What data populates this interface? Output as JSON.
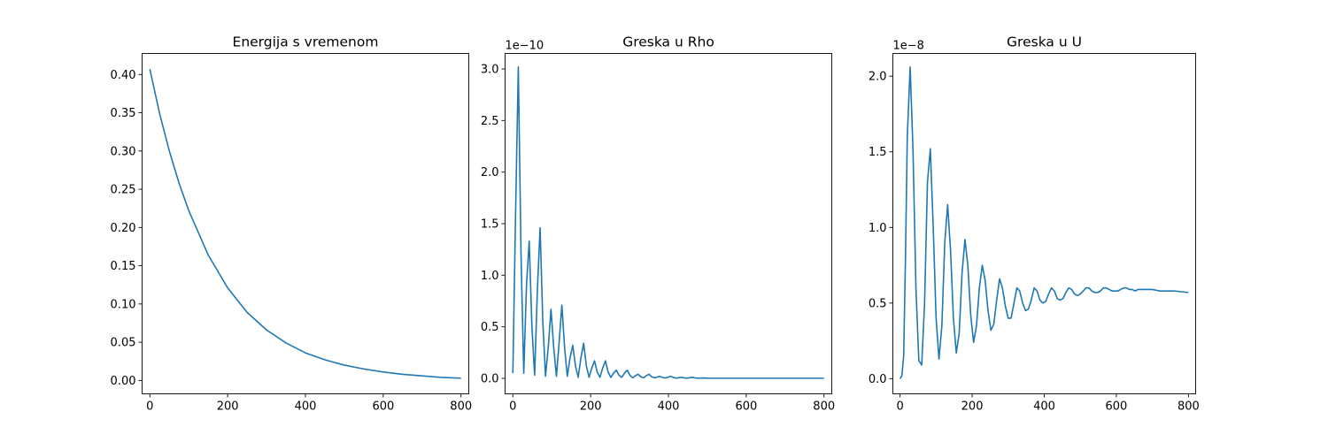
{
  "chart_data": [
    {
      "type": "line",
      "title": "Energija s vremenom",
      "xlabel": "",
      "ylabel": "",
      "xlim": [
        -20,
        820
      ],
      "ylim": [
        -0.0175,
        0.4275
      ],
      "xticks": [
        0,
        200,
        400,
        600,
        800
      ],
      "xtick_labels": [
        "0",
        "200",
        "400",
        "600",
        "800"
      ],
      "yticks": [
        0,
        0.05,
        0.1,
        0.15,
        0.2,
        0.25,
        0.3,
        0.35,
        0.4
      ],
      "ytick_labels": [
        "0.00",
        "0.05",
        "0.10",
        "0.15",
        "0.20",
        "0.25",
        "0.30",
        "0.35",
        "0.40"
      ],
      "offset_text": "",
      "grid": false,
      "series": [
        {
          "color": "#1f77b4",
          "x": [
            0,
            25,
            50,
            75,
            100,
            150,
            200,
            250,
            300,
            350,
            400,
            450,
            500,
            550,
            600,
            650,
            700,
            750,
            800
          ],
          "y": [
            0.407,
            0.349,
            0.3,
            0.258,
            0.222,
            0.164,
            0.121,
            0.089,
            0.066,
            0.049,
            0.036,
            0.027,
            0.02,
            0.015,
            0.011,
            0.008,
            0.006,
            0.004,
            0.003
          ]
        }
      ]
    },
    {
      "type": "line",
      "title": "Greska u Rho",
      "xlabel": "",
      "ylabel": "",
      "xlim": [
        -20,
        820
      ],
      "ylim": [
        -0.15,
        3.15
      ],
      "xticks": [
        0,
        200,
        400,
        600,
        800
      ],
      "xtick_labels": [
        "0",
        "200",
        "400",
        "600",
        "800"
      ],
      "yticks": [
        0,
        0.5,
        1.0,
        1.5,
        2.0,
        2.5,
        3.0
      ],
      "ytick_labels": [
        "0.0",
        "0.5",
        "1.0",
        "1.5",
        "2.0",
        "2.5",
        "3.0"
      ],
      "offset_text": "1e−10",
      "grid": false,
      "series": [
        {
          "color": "#1f77b4",
          "x": [
            0,
            7,
            14,
            21,
            28,
            35,
            42,
            49,
            56,
            63,
            70,
            77,
            84,
            91,
            98,
            105,
            112,
            119,
            126,
            133,
            140,
            147,
            154,
            161,
            168,
            175,
            182,
            189,
            196,
            203,
            210,
            217,
            224,
            231,
            238,
            245,
            252,
            259,
            266,
            273,
            280,
            287,
            294,
            301,
            308,
            315,
            322,
            329,
            336,
            343,
            350,
            357,
            364,
            371,
            378,
            385,
            392,
            399,
            406,
            413,
            420,
            427,
            434,
            441,
            448,
            455,
            462,
            469,
            476,
            483,
            490,
            500,
            550,
            600,
            650,
            700,
            750,
            800
          ],
          "y": [
            0.05,
            1.6,
            3.02,
            1.2,
            0.05,
            0.9,
            1.33,
            0.5,
            0.03,
            0.85,
            1.46,
            0.55,
            0.02,
            0.3,
            0.67,
            0.3,
            0.02,
            0.35,
            0.71,
            0.3,
            0.02,
            0.2,
            0.32,
            0.12,
            0.01,
            0.2,
            0.34,
            0.12,
            0.01,
            0.1,
            0.17,
            0.06,
            0.01,
            0.1,
            0.17,
            0.06,
            0.01,
            0.05,
            0.08,
            0.03,
            0.01,
            0.05,
            0.08,
            0.03,
            0.005,
            0.025,
            0.04,
            0.015,
            0.005,
            0.025,
            0.04,
            0.015,
            0.005,
            0.012,
            0.02,
            0.008,
            0.003,
            0.012,
            0.02,
            0.008,
            0.003,
            0.006,
            0.01,
            0.004,
            0.002,
            0.006,
            0.01,
            0.004,
            0.002,
            0.003,
            0.004,
            0.002,
            0.001,
            0.001,
            0.001,
            0.001,
            0.001,
            0.001
          ]
        }
      ]
    },
    {
      "type": "line",
      "title": "Greska u U",
      "xlabel": "",
      "ylabel": "",
      "xlim": [
        -20,
        820
      ],
      "ylim": [
        -0.1,
        2.15
      ],
      "xticks": [
        0,
        200,
        400,
        600,
        800
      ],
      "xtick_labels": [
        "0",
        "200",
        "400",
        "600",
        "800"
      ],
      "yticks": [
        0,
        0.5,
        1.0,
        1.5,
        2.0
      ],
      "ytick_labels": [
        "0.0",
        "0.5",
        "1.0",
        "1.5",
        "2.0"
      ],
      "offset_text": "1e−8",
      "grid": false,
      "series": [
        {
          "color": "#1f77b4",
          "x": [
            0,
            5,
            10,
            15,
            20,
            28,
            36,
            44,
            52,
            60,
            68,
            76,
            84,
            92,
            100,
            108,
            116,
            124,
            132,
            140,
            148,
            156,
            164,
            172,
            180,
            188,
            196,
            204,
            212,
            220,
            228,
            236,
            244,
            252,
            260,
            268,
            276,
            284,
            292,
            300,
            308,
            316,
            324,
            332,
            340,
            348,
            356,
            364,
            372,
            380,
            388,
            396,
            404,
            412,
            420,
            428,
            436,
            444,
            452,
            460,
            468,
            476,
            484,
            492,
            500,
            508,
            516,
            524,
            532,
            540,
            548,
            556,
            564,
            572,
            580,
            588,
            596,
            604,
            612,
            620,
            628,
            636,
            644,
            652,
            660,
            668,
            676,
            684,
            692,
            700,
            720,
            740,
            760,
            780,
            800
          ],
          "y": [
            0.0,
            0.02,
            0.15,
            0.8,
            1.6,
            2.06,
            1.5,
            0.6,
            0.12,
            0.09,
            0.5,
            1.3,
            1.52,
            1.0,
            0.4,
            0.13,
            0.35,
            0.9,
            1.15,
            0.85,
            0.4,
            0.17,
            0.3,
            0.7,
            0.92,
            0.75,
            0.42,
            0.24,
            0.35,
            0.6,
            0.75,
            0.65,
            0.45,
            0.32,
            0.36,
            0.52,
            0.66,
            0.6,
            0.48,
            0.4,
            0.4,
            0.5,
            0.6,
            0.58,
            0.5,
            0.45,
            0.46,
            0.52,
            0.6,
            0.58,
            0.52,
            0.5,
            0.51,
            0.56,
            0.6,
            0.58,
            0.53,
            0.52,
            0.53,
            0.57,
            0.6,
            0.59,
            0.56,
            0.55,
            0.56,
            0.58,
            0.6,
            0.6,
            0.58,
            0.57,
            0.57,
            0.58,
            0.6,
            0.6,
            0.59,
            0.58,
            0.58,
            0.58,
            0.59,
            0.6,
            0.6,
            0.59,
            0.59,
            0.58,
            0.59,
            0.59,
            0.59,
            0.59,
            0.59,
            0.59,
            0.58,
            0.58,
            0.58,
            0.575,
            0.57
          ]
        }
      ]
    }
  ]
}
